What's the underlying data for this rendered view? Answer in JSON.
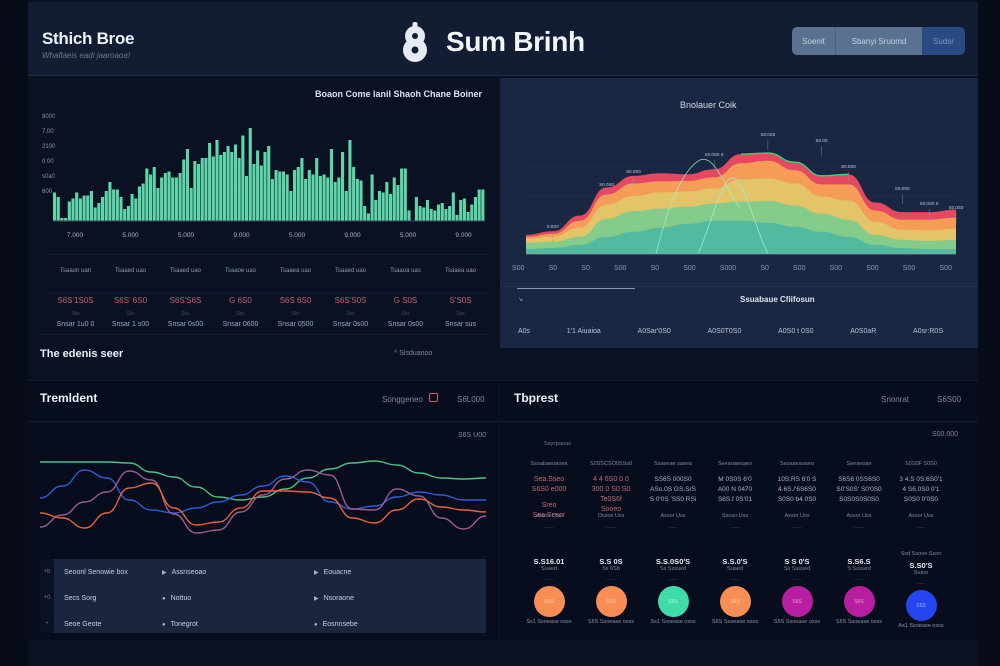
{
  "header": {
    "brand_title": "Sthich Broe",
    "brand_subtitle": "Whaflaeis eadi jaaroaoa!",
    "logo_glyph": "8",
    "app_name": "Sum Brinh",
    "buttons": [
      {
        "label": "Soenit",
        "active": false
      },
      {
        "label": "Sbanyi Sruomd",
        "active": false
      },
      {
        "label": "Sudsr",
        "active": true
      }
    ]
  },
  "bar_panel": {
    "stats": [
      {
        "label": "Tsaaon uan",
        "value": "S6S'1S0S",
        "tiny": "Sbs",
        "sub": "Snsar 1u0 0"
      },
      {
        "label": "Tsaaed uao",
        "value": "S6S' 6S0",
        "tiny": "Sbs",
        "sub": "Snsar 1 s00"
      },
      {
        "label": "Tsaaed uao",
        "value": "S6S'S6S",
        "tiny": "Sbs",
        "sub": "Snsar 0s00"
      },
      {
        "label": "Tsaaoe uao",
        "value": "G 6S0",
        "tiny": "Sbs",
        "sub": "Snsar 0600"
      },
      {
        "label": "Tsaaea uao",
        "value": "S6S 6S0",
        "tiny": "Sbs",
        "sub": "Snsar 0500"
      },
      {
        "label": "Tsaaed uao",
        "value": "S6S'S0S",
        "tiny": "Sbs",
        "sub": "Snsar 0s00"
      },
      {
        "label": "Tsaaoa uas",
        "value": "G S0S",
        "tiny": "Sbs",
        "sub": "Snsar 0s00"
      },
      {
        "label": "Tsaaea uao",
        "value": "S'S0S",
        "tiny": "Sbs",
        "sub": "Snsar sus"
      }
    ],
    "section_title": "The edenis seer",
    "section_meta": "^ Sisduanoo"
  },
  "area_panel": {
    "sub_title": "Ssuabaue Cfiifosun",
    "bottom_labels": [
      "A0s",
      "1'1 Aiuaioa",
      "A0Sar'0S0",
      "A0S0T0S0",
      "A0S0 t 0S0",
      "A0S0aR",
      "A0sr:R0S"
    ]
  },
  "trend_panel": {
    "title": "Tremldent",
    "meta_label": "Songgeneo",
    "meta_value": "S6L000",
    "corner_value": "S6S U00",
    "rows": [
      {
        "num": "+b",
        "c1": "Seoonl Senowie box",
        "c2": "Assnseoao",
        "c3": "Eouacne"
      },
      {
        "num": "+0",
        "c1": "Secs Sorg",
        "c2": "Nottuo",
        "c3": "Nsoraone"
      },
      {
        "num": "+",
        "c1": "Seoe Geote",
        "c2": "Tonegrot",
        "c3": "Eosnnsebe"
      }
    ]
  },
  "tbprest_panel": {
    "title": "Tbprest",
    "meta_label": "Snonrat",
    "meta_value": "S6S00",
    "corner_value": "S00.000",
    "side_label": "Ssycpaoao",
    "columns": [
      {
        "head": "Ssoabaeoaoea",
        "red": [
          "Sea.Sseo",
          "S6S0 e000",
          "",
          "Sreo",
          "Sea Sesor"
        ],
        "white": []
      },
      {
        "head": "S0SSCSO0SSs0",
        "red": [
          "4 4 6S0 0 0",
          "300 0 S0 S0",
          "Te0S6f",
          "Sooeo"
        ],
        "white": []
      },
      {
        "head": "Ssaeeae saeea",
        "red": [],
        "white": [
          "SS6S 000S0",
          "ASo.0S GS.SrS",
          "S 0'0S 'SS0 RSi"
        ]
      },
      {
        "head": "Seeaoaeoaeo",
        "red": [],
        "white": [
          "M 0S0S 6'0",
          "A00 N 0470",
          "S6S.f 0S'01"
        ]
      },
      {
        "head": "Ssoaaeaoaeo",
        "red": [],
        "white": [
          "10S.RS 6'0 S",
          "4.6S./'6S6S0",
          "S0S0 b4.0S0"
        ]
      },
      {
        "head": "Seeaeoae",
        "red": [],
        "white": [
          "S6S6 0SS6S0",
          "S0'S0S' S0'0S0",
          "S0S0S0S0S0"
        ]
      },
      {
        "head": "S0S0F S0S0",
        "red": [],
        "white": [
          "3 4.S 0S.6S0'1",
          "4 S6.0S0 0'1",
          "S0S0 0'0S0"
        ]
      }
    ],
    "circles": [
      {
        "lbl1": "Assor Uss",
        "lbl2": "------",
        "value": "S.S16.01",
        "sub": "Suaed",
        "tiny": "------",
        "color": "#f98e54",
        "inner": "S6S",
        "foot": "Ss1 Ssoease osss"
      },
      {
        "lbl1": "Ossos Uss",
        "lbl2": "------",
        "value": "S.S 0S",
        "sub": "Ss 6Sb",
        "tiny": "------",
        "color": "#f98e54",
        "inner": "S6S",
        "foot": "S6S Ssoease osss"
      },
      {
        "lbl1": "Assor Uss",
        "lbl2": "------",
        "value": "S.S.0S0'S",
        "sub": "Ss Sssued",
        "tiny": "------",
        "color": "#3fdcaa",
        "inner": "S6S",
        "foot": "Ss1 Ssoease osss"
      },
      {
        "lbl1": "Ssoso Uss",
        "lbl2": "------",
        "value": "S.S.0'S",
        "sub": "Suaed",
        "tiny": "------",
        "color": "#f98e54",
        "inner": "S6S",
        "foot": "S6S Ssoease osss"
      },
      {
        "lbl1": "Assor Uss",
        "lbl2": "------",
        "value": "S S 0'S",
        "sub": "Ss Sssued",
        "tiny": "------",
        "color": "#b81fa0",
        "inner": "S6S",
        "foot": "S6S Ssoease osss"
      },
      {
        "lbl1": "Assor Uss",
        "lbl2": "------",
        "value": "S.S6.S",
        "sub": "S Sssued",
        "tiny": "------",
        "color": "#b81fa0",
        "inner": "S6S",
        "foot": "S6S Ssoease osss"
      },
      {
        "lbl1": "Assor Uss",
        "lbl2": "------",
        "value": "S.S0'S",
        "sub": "Suaor",
        "tiny": "------",
        "color": "#2346f0",
        "inner": "S6S",
        "foot": "As1 Ssoease osss",
        "extra": "Ssd Ssooe Ssoo"
      }
    ]
  },
  "chart_data": [
    {
      "type": "bar",
      "title": "Boaon Come lanil Shaoh Chane Boiner",
      "ylabel": "",
      "xlabel": "",
      "ytick_labels": [
        "600",
        "s0a0",
        "0.00",
        "2100",
        "7.00",
        "8000"
      ],
      "xtick_labels": [
        "7.000",
        "5.000",
        "5.000",
        "9.000",
        "5.000",
        "9.000",
        "5.000",
        "9.000"
      ],
      "ylim": [
        0,
        7
      ],
      "color": "#5fd6a9",
      "values": [
        1.9,
        1.6,
        0.2,
        0.2,
        1.3,
        1.5,
        1.9,
        1.5,
        1.7,
        1.7,
        2.0,
        0.9,
        1.2,
        1.6,
        2.0,
        2.6,
        2.1,
        2.1,
        1.6,
        0.8,
        1.0,
        1.8,
        1.5,
        2.3,
        2.5,
        3.5,
        3.1,
        3.6,
        2.2,
        2.9,
        3.2,
        3.3,
        2.9,
        2.9,
        3.2,
        4.1,
        4.8,
        2.2,
        4.0,
        3.8,
        4.2,
        4.2,
        5.2,
        4.3,
        5.4,
        4.4,
        4.6,
        5.0,
        4.6,
        5.1,
        4.2,
        5.7,
        3.0,
        6.2,
        3.8,
        4.7,
        3.7,
        4.6,
        5.0,
        2.8,
        3.4,
        3.3,
        3.3,
        3.1,
        2.0,
        3.4,
        3.6,
        4.2,
        2.8,
        3.4,
        3.1,
        4.2,
        3.0,
        3.1,
        2.9,
        4.8,
        2.6,
        2.9,
        4.6,
        2.0,
        5.4,
        3.6,
        2.8,
        2.7,
        1.0,
        0.5,
        3.1,
        1.4,
        2.0,
        1.9,
        2.6,
        1.8,
        2.9,
        2.4,
        3.5,
        3.5,
        0.7,
        0,
        1.6,
        1.0,
        0.9,
        1.4,
        0.8,
        0.7,
        1.1,
        1.2,
        0.8,
        1.0,
        1.9,
        0.4,
        1.4,
        1.5,
        0.6,
        1.1,
        1.6,
        2.1,
        2.1
      ]
    },
    {
      "type": "area",
      "title": "Bnolauer Coik",
      "x_tick_labels": [
        "S00",
        "S0",
        "S0",
        "S00",
        "S0",
        "S00",
        "S000",
        "S0",
        "S00",
        "S00",
        "S00",
        "S00",
        "S00"
      ],
      "x": [
        0,
        1,
        2,
        3,
        4,
        5,
        6,
        7,
        8,
        9,
        10,
        11,
        12,
        13,
        14,
        15,
        16
      ],
      "series": [
        {
          "name": "red",
          "color": "#f04b63",
          "values": [
            0.38,
            0.45,
            0.76,
            1.32,
            1.55,
            1.6,
            1.58,
            1.68,
            1.98,
            2.0,
            1.82,
            1.55,
            1.58,
            1.02,
            0.83,
            0.83,
            0.88
          ]
        },
        {
          "name": "orange",
          "color": "#f7a158",
          "values": [
            0.34,
            0.4,
            0.66,
            1.18,
            1.4,
            1.44,
            1.45,
            1.52,
            1.8,
            1.85,
            1.66,
            1.38,
            1.38,
            0.86,
            0.68,
            0.68,
            0.72
          ]
        },
        {
          "name": "yellow",
          "color": "#e2c66a",
          "values": [
            0.3,
            0.34,
            0.52,
            0.98,
            1.15,
            1.22,
            1.24,
            1.3,
            1.48,
            1.5,
            1.4,
            1.14,
            1.06,
            0.64,
            0.48,
            0.47,
            0.5
          ]
        },
        {
          "name": "green",
          "color": "#7fcc8c",
          "values": [
            0.22,
            0.24,
            0.34,
            0.7,
            0.85,
            0.9,
            0.94,
            1.0,
            1.04,
            1.05,
            0.96,
            0.8,
            0.68,
            0.38,
            0.28,
            0.26,
            0.28
          ]
        },
        {
          "name": "teal",
          "color": "#4fb8a0",
          "values": [
            0.1,
            0.12,
            0.18,
            0.34,
            0.44,
            0.52,
            0.6,
            0.66,
            0.66,
            0.62,
            0.54,
            0.44,
            0.34,
            0.18,
            0.12,
            0.1,
            0.1
          ]
        }
      ],
      "annotations": [
        "0.0S0",
        "S0.0S0",
        "S0.0S0",
        "S0.0S0 S",
        "S0.0S0",
        "S0.0S",
        "S0.0S0",
        "S0.0S0",
        "S0.0S0 S",
        "S0.0S0"
      ],
      "ylim": [
        0,
        2.3
      ]
    },
    {
      "type": "line",
      "title": "Tremldent",
      "x": [
        0,
        1,
        2,
        3,
        4,
        5,
        6,
        7,
        8,
        9,
        10,
        11,
        12,
        13,
        14,
        15,
        16,
        17,
        18,
        19,
        20
      ],
      "ylim": [
        0,
        10
      ],
      "series": [
        {
          "name": "green",
          "color": "#4fbf8a",
          "values": [
            8.6,
            8.6,
            8.6,
            8.6,
            8.5,
            7.6,
            7.1,
            6.1,
            5.1,
            4.8,
            5.1,
            5.9,
            7.0,
            7.9,
            8.5,
            8.7,
            8.3,
            7.5,
            7.0,
            6.9,
            7.0
          ]
        },
        {
          "name": "blue",
          "color": "#2e5bd6",
          "values": [
            5.0,
            6.2,
            7.8,
            7.0,
            4.8,
            3.8,
            3.5,
            4.0,
            4.6,
            5.3,
            6.2,
            7.2,
            6.6,
            4.6,
            3.9,
            4.2,
            5.1,
            5.6,
            5.3,
            4.8,
            4.8
          ]
        },
        {
          "name": "violet",
          "color": "#9a5b8f",
          "values": [
            2.1,
            3.3,
            4.6,
            5.6,
            7.7,
            6.8,
            3.4,
            1.5,
            1.8,
            3.6,
            5.3,
            6.9,
            7.8,
            7.3,
            3.9,
            3.8,
            5.9,
            5.2,
            3.0,
            1.9,
            3.2
          ]
        },
        {
          "name": "orange",
          "color": "#e8623e",
          "values": [
            3.5,
            3.0,
            2.0,
            3.5,
            6.0,
            6.5,
            4.0,
            2.3,
            2.6,
            4.0,
            5.7,
            5.7,
            5.6,
            5.0,
            3.0,
            2.5,
            3.8,
            4.9,
            4.1,
            3.8,
            3.6
          ]
        }
      ]
    }
  ]
}
